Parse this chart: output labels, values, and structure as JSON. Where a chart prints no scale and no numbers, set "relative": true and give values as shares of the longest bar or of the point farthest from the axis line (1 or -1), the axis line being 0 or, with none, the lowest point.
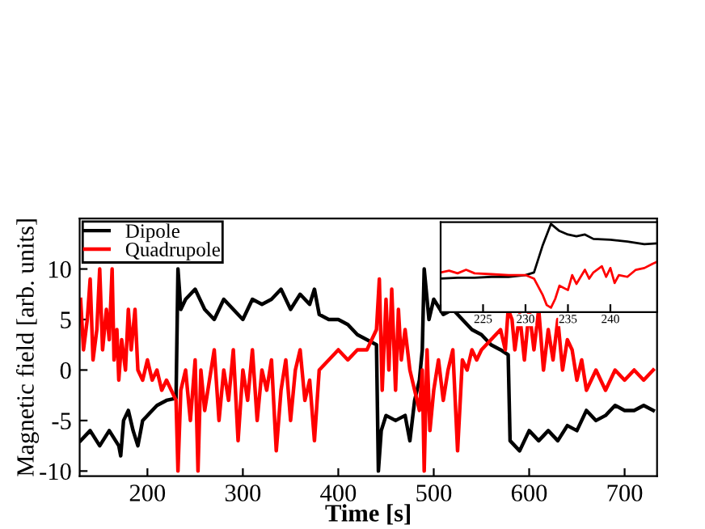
{
  "chart_data": [
    {
      "type": "line",
      "xlabel": "Time [s]",
      "ylabel": "Magnetic field [arb. units]",
      "xlim": [
        129,
        734
      ],
      "ylim": [
        -10.5,
        15
      ],
      "xticks": [
        200,
        300,
        400,
        500,
        600,
        700
      ],
      "yticks": [
        -10,
        -5,
        0,
        5,
        10
      ],
      "grid": false,
      "legend": "top left",
      "line_style": "solid",
      "series": [
        {
          "name": "Dipole",
          "color": "#000000",
          "x": [
            130,
            140,
            150,
            160,
            170,
            172,
            175,
            180,
            185,
            190,
            195,
            200,
            210,
            220,
            230,
            232,
            235,
            240,
            250,
            255,
            260,
            270,
            280,
            290,
            300,
            310,
            320,
            330,
            340,
            350,
            360,
            370,
            375,
            380,
            390,
            400,
            410,
            420,
            430,
            440,
            442,
            445,
            450,
            460,
            470,
            475,
            480,
            485,
            488,
            490,
            495,
            500,
            510,
            520,
            530,
            540,
            550,
            560,
            570,
            578,
            580,
            590,
            600,
            610,
            620,
            630,
            640,
            650,
            660,
            670,
            680,
            690,
            700,
            710,
            720,
            730
          ],
          "values": [
            -7,
            -6,
            -7.5,
            -6,
            -7.5,
            -8.5,
            -5,
            -4,
            -6,
            -7.5,
            -5,
            -4.5,
            -3.5,
            -3,
            -2.8,
            10,
            6,
            7,
            8,
            7,
            6,
            5,
            7,
            6,
            5,
            7,
            6.5,
            7,
            8,
            6,
            7.5,
            6.5,
            8,
            5.5,
            5,
            5,
            4.5,
            3.5,
            3,
            2.5,
            -10,
            -6,
            -4.5,
            -5,
            -4.5,
            -7,
            -3,
            -1,
            2,
            10,
            5,
            7,
            5.5,
            6,
            5,
            4,
            3.5,
            2.5,
            2,
            1.5,
            -7,
            -8,
            -6,
            -7,
            -6,
            -7,
            -5.5,
            -6,
            -4,
            -5,
            -4.5,
            -3.5,
            -4,
            -4,
            -3.5,
            -4
          ]
        },
        {
          "name": "Quadrupole",
          "color": "#ff0000",
          "x": [
            130,
            133,
            137,
            140,
            143,
            147,
            150,
            153,
            157,
            160,
            163,
            165,
            168,
            170,
            173,
            177,
            180,
            183,
            187,
            190,
            195,
            200,
            205,
            210,
            215,
            220,
            225,
            230,
            232,
            235,
            240,
            245,
            250,
            253,
            256,
            260,
            265,
            270,
            275,
            280,
            285,
            290,
            295,
            300,
            305,
            310,
            315,
            320,
            325,
            330,
            335,
            340,
            345,
            350,
            355,
            360,
            365,
            370,
            375,
            380,
            390,
            400,
            410,
            420,
            430,
            440,
            443,
            446,
            450,
            453,
            456,
            460,
            463,
            466,
            470,
            475,
            480,
            485,
            488,
            490,
            493,
            496,
            500,
            505,
            510,
            515,
            520,
            525,
            530,
            535,
            540,
            545,
            550,
            560,
            570,
            575,
            578,
            582,
            585,
            590,
            595,
            600,
            605,
            610,
            615,
            620,
            625,
            630,
            635,
            640,
            645,
            650,
            655,
            660,
            670,
            680,
            690,
            700,
            710,
            720,
            730
          ],
          "values": [
            7,
            2,
            5,
            9,
            1,
            4,
            10,
            2,
            6,
            3,
            10,
            1,
            4,
            -1,
            3,
            0,
            6,
            2,
            6,
            0,
            -1,
            1,
            -1,
            0,
            -2,
            -1,
            -2,
            -3,
            -10,
            -2,
            0,
            -5,
            1,
            -10,
            0,
            -4,
            -1,
            2,
            -5,
            0,
            -3,
            2,
            -7,
            0,
            -3,
            2,
            -5,
            0,
            -2,
            1,
            -8,
            -2,
            1,
            -5,
            0,
            2,
            -3,
            -1,
            -7,
            0,
            1,
            2,
            1,
            2,
            2,
            4,
            9,
            -2,
            7,
            0,
            8,
            -2,
            6,
            1,
            4,
            0,
            -2,
            -4,
            0,
            -10,
            2,
            -6,
            -2,
            1,
            -3,
            0,
            2,
            -8,
            1,
            0,
            2,
            1,
            2,
            3,
            4,
            2,
            6,
            5,
            2,
            5.5,
            1,
            6,
            2,
            6,
            0,
            4,
            1,
            5,
            0,
            3,
            2,
            -1,
            1,
            -2,
            0,
            -2,
            0,
            -1,
            0,
            -1,
            0
          ]
        }
      ]
    },
    {
      "type": "line",
      "relative": true,
      "xlim": [
        220,
        245.5
      ],
      "xticks": [
        {
          "value": 220,
          "label": null
        },
        225,
        230,
        235,
        240
      ],
      "tick_labels": "x",
      "line_style": "solid",
      "series": [
        {
          "color": "#000000",
          "x": [
            220,
            222,
            224,
            226,
            228,
            230,
            231,
            232,
            233,
            234,
            235,
            236,
            237,
            238,
            240,
            242,
            244,
            245.5
          ],
          "values": [
            0.38,
            0.39,
            0.39,
            0.4,
            0.4,
            0.42,
            0.45,
            0.75,
            1.0,
            0.92,
            0.88,
            0.86,
            0.88,
            0.83,
            0.82,
            0.8,
            0.77,
            0.78
          ]
        },
        {
          "color": "#ff0000",
          "x": [
            220,
            221,
            222,
            223,
            224,
            226,
            228,
            230,
            231,
            232,
            232.5,
            233,
            233.5,
            234,
            235,
            235.5,
            236,
            237,
            237.5,
            238,
            239,
            239.5,
            240,
            240.5,
            241,
            242,
            243,
            244,
            245,
            245.5
          ],
          "values": [
            0.45,
            0.47,
            0.44,
            0.48,
            0.44,
            0.43,
            0.42,
            0.42,
            0.38,
            0.2,
            0.08,
            0.05,
            0.15,
            0.3,
            0.25,
            0.42,
            0.32,
            0.48,
            0.38,
            0.45,
            0.52,
            0.4,
            0.5,
            0.33,
            0.42,
            0.4,
            0.48,
            0.5,
            0.55,
            0.57
          ]
        }
      ]
    }
  ]
}
